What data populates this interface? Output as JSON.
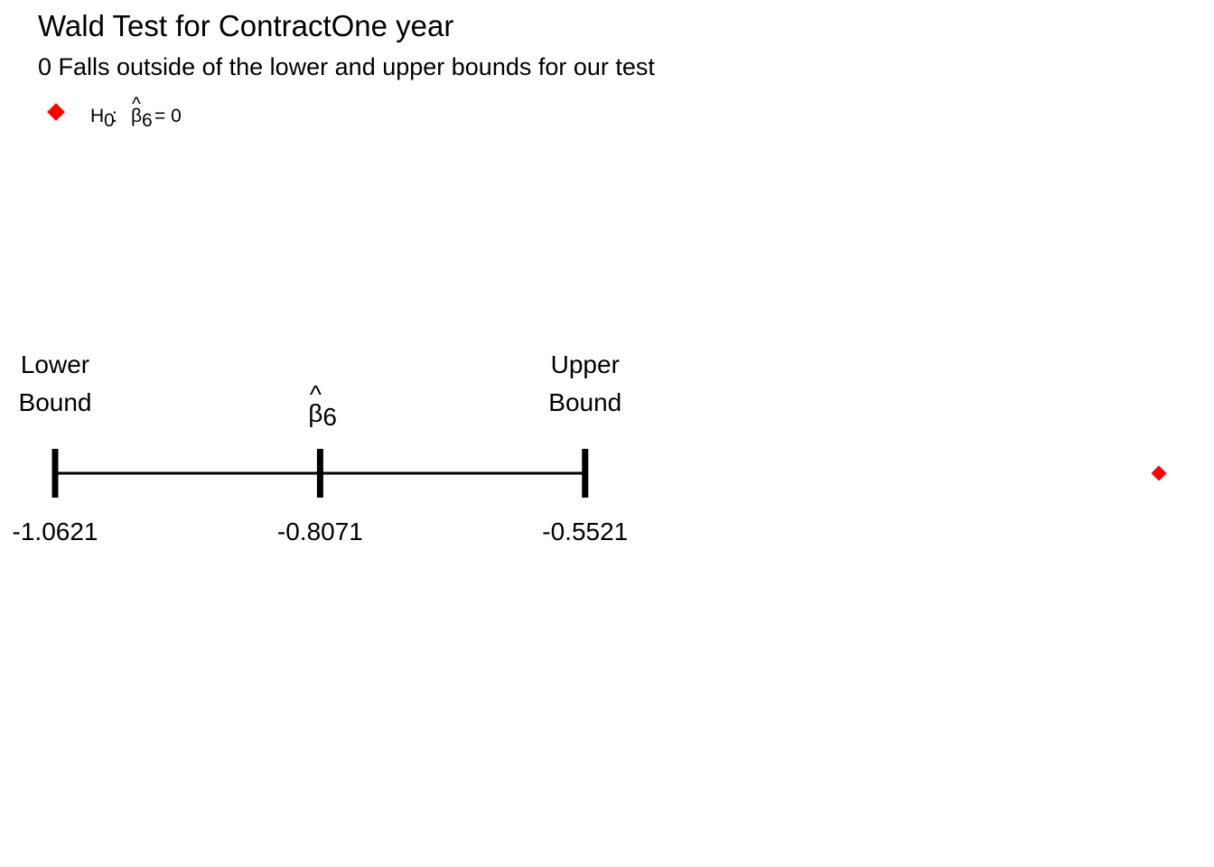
{
  "chart_data": {
    "type": "scatter",
    "title": "Wald Test for ContractOne year",
    "subtitle": "0 Falls outside of the lower and upper bounds for our test",
    "legend": {
      "placement": "top-left",
      "marker_color": "#ff0000",
      "entry": {
        "prefix": "H",
        "prefix_sub": "0",
        "colon": ":",
        "symbol": "β",
        "hat": "^",
        "symbol_sub": "6",
        "equals": "= 0"
      }
    },
    "estimate": {
      "symbol": "β",
      "hat": "^",
      "sub": "6",
      "value": -0.8071,
      "value_label": "-0.8071"
    },
    "lower_bound": {
      "label_line1": "Lower",
      "label_line2": "Bound",
      "value": -1.0621,
      "value_label": "-1.0621"
    },
    "upper_bound": {
      "label_line1": "Upper",
      "label_line2": "Bound",
      "value": -0.5521,
      "value_label": "-0.5521"
    },
    "null_value": 0,
    "null_marker_color": "#ff0000",
    "xlim": [
      -1.0621,
      0
    ],
    "grid": false
  }
}
